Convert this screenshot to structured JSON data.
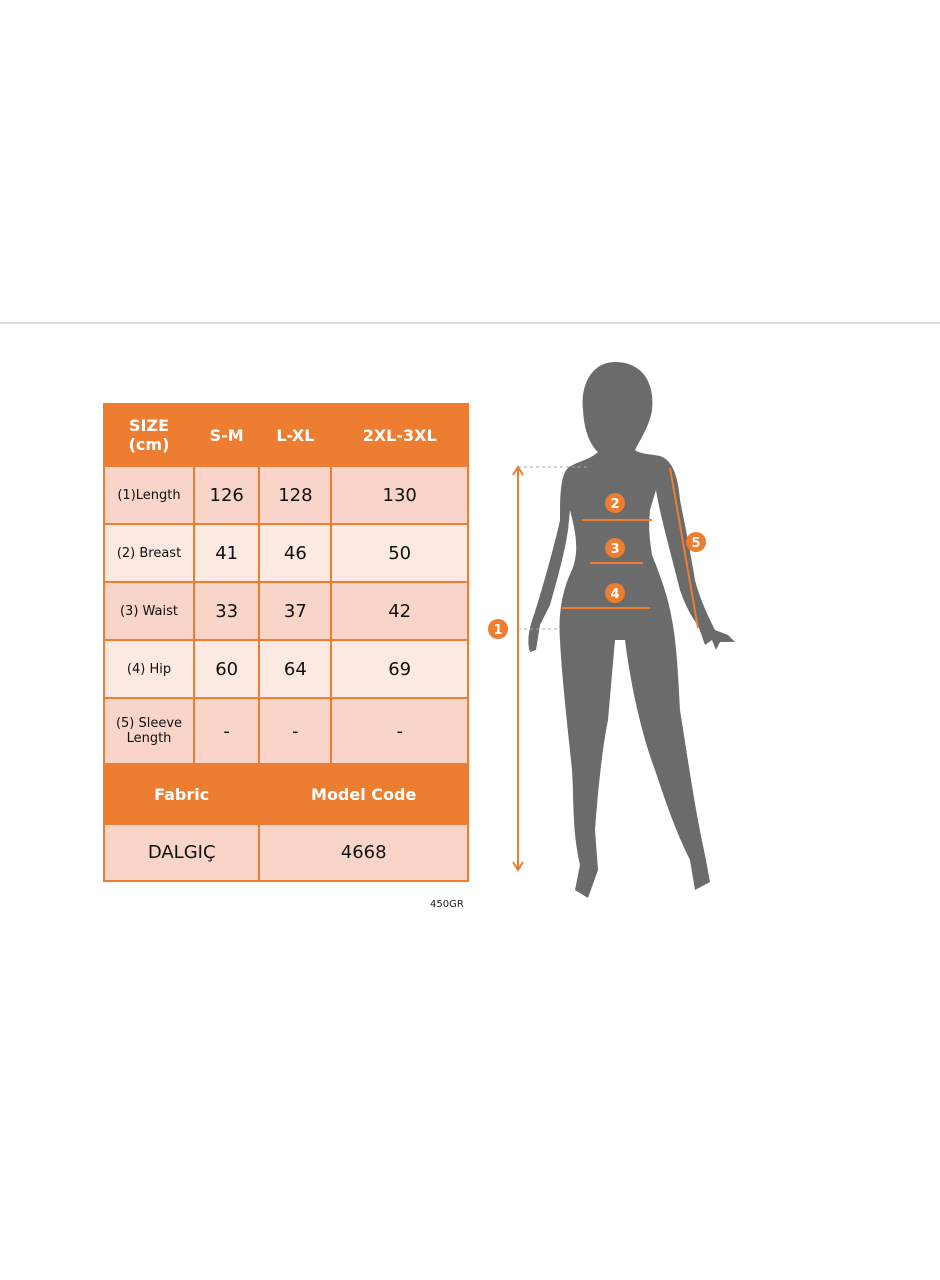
{
  "table": {
    "header": [
      "SIZE\n(cm)",
      "S-M",
      "L-XL",
      "2XL-3XL"
    ],
    "header_line1": "SIZE",
    "header_line2": "(cm)",
    "rows": [
      {
        "label": "(1)Length",
        "values": [
          "126",
          "128",
          "130"
        ]
      },
      {
        "label": "(2) Breast",
        "values": [
          "41",
          "46",
          "50"
        ]
      },
      {
        "label": "(3) Waist",
        "values": [
          "33",
          "37",
          "42"
        ]
      },
      {
        "label": "(4) Hip",
        "values": [
          "60",
          "64",
          "69"
        ]
      },
      {
        "label_line1": "(5) Sleeve",
        "label_line2": "Length",
        "values": [
          "-",
          "-",
          "-"
        ]
      }
    ],
    "footer_headers": [
      "Fabric",
      "Model Code"
    ],
    "footer_values": [
      "DALGIÇ",
      "4668"
    ]
  },
  "weight_code": "450GR",
  "figure": {
    "markers": [
      "1",
      "2",
      "3",
      "4",
      "5"
    ]
  },
  "colors": {
    "accent": "#ED7D31",
    "cell": "#F8D5C8",
    "cell_alt": "#FBE9E2",
    "silhouette": "#6b6b6b"
  }
}
